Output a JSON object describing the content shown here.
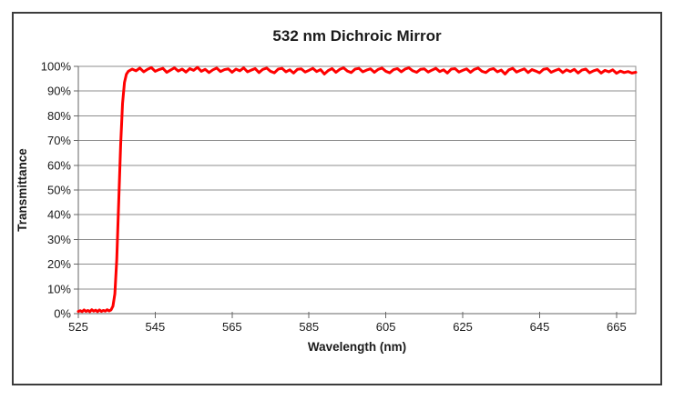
{
  "window": {
    "background": "#ffffff",
    "frame_border_color": "#3c3c3c"
  },
  "chart_data": {
    "type": "line",
    "title": "532 nm Dichroic Mirror",
    "xlabel": "Wavelength (nm)",
    "ylabel": "Transmittance",
    "xlim": [
      525,
      670
    ],
    "ylim": [
      0,
      100
    ],
    "x_ticks": [
      525,
      545,
      565,
      585,
      605,
      625,
      645,
      665
    ],
    "y_ticks": [
      0,
      10,
      20,
      30,
      40,
      50,
      60,
      70,
      80,
      90,
      100
    ],
    "y_tick_suffix": "%",
    "grid": "horizontal",
    "legend": "none",
    "colors": {
      "line": "#ff0000",
      "gridline": "#8c8c8c",
      "plot_border": "#8c8c8c",
      "axis": "#666666",
      "text": "#1a1a1a"
    },
    "line_width": 3,
    "series": [
      {
        "name": "Transmittance",
        "x": [
          525,
          525.5,
          526,
          526.5,
          527,
          527.5,
          528,
          528.5,
          529,
          529.5,
          530,
          530.5,
          531,
          531.5,
          532,
          532.5,
          533,
          533.5,
          534,
          534.5,
          535,
          535.5,
          536,
          536.5,
          537,
          537.5,
          538,
          539,
          540,
          541,
          542,
          543,
          544,
          545,
          546,
          547,
          548,
          549,
          550,
          551,
          552,
          553,
          554,
          555,
          556,
          557,
          558,
          559,
          560,
          561,
          562,
          563,
          564,
          565,
          566,
          567,
          568,
          569,
          570,
          571,
          572,
          573,
          574,
          575,
          576,
          577,
          578,
          579,
          580,
          581,
          582,
          583,
          584,
          585,
          586,
          587,
          588,
          589,
          590,
          591,
          592,
          593,
          594,
          595,
          596,
          597,
          598,
          599,
          600,
          601,
          602,
          603,
          604,
          605,
          606,
          607,
          608,
          609,
          610,
          611,
          612,
          613,
          614,
          615,
          616,
          617,
          618,
          619,
          620,
          621,
          622,
          623,
          624,
          625,
          626,
          627,
          628,
          629,
          630,
          631,
          632,
          633,
          634,
          635,
          636,
          637,
          638,
          639,
          640,
          641,
          642,
          643,
          644,
          645,
          646,
          647,
          648,
          649,
          650,
          651,
          652,
          653,
          654,
          655,
          656,
          657,
          658,
          659,
          660,
          661,
          662,
          663,
          664,
          665,
          666,
          667,
          668,
          669,
          670
        ],
        "y": [
          0.9,
          1.2,
          0.8,
          1.5,
          0.9,
          1.3,
          0.8,
          1.6,
          1.0,
          1.4,
          0.8,
          1.5,
          0.9,
          1.3,
          1.0,
          1.6,
          1.1,
          1.5,
          3.0,
          8.0,
          22,
          45,
          68,
          85,
          93.5,
          96.8,
          98.0,
          98.9,
          98.2,
          99.3,
          97.8,
          98.8,
          99.5,
          98.0,
          98.7,
          99.2,
          97.6,
          98.5,
          99.4,
          98.1,
          98.9,
          97.7,
          99.1,
          98.4,
          99.6,
          98.0,
          98.8,
          97.5,
          98.6,
          99.3,
          97.9,
          98.7,
          99.0,
          97.6,
          98.9,
          98.2,
          99.4,
          97.8,
          98.5,
          99.1,
          97.5,
          98.8,
          99.3,
          98.0,
          97.4,
          98.9,
          99.2,
          97.8,
          98.6,
          97.3,
          98.8,
          99.0,
          97.7,
          98.4,
          99.2,
          97.9,
          98.7,
          96.9,
          98.3,
          99.1,
          97.6,
          98.8,
          99.4,
          98.1,
          97.5,
          98.9,
          99.2,
          97.8,
          98.5,
          99.0,
          97.6,
          98.8,
          99.3,
          98.0,
          97.4,
          98.7,
          99.1,
          97.8,
          98.9,
          99.4,
          98.2,
          97.6,
          98.8,
          99.0,
          97.7,
          98.5,
          99.2,
          97.9,
          98.6,
          97.3,
          98.9,
          99.1,
          97.7,
          98.4,
          99.0,
          97.6,
          98.8,
          99.3,
          98.0,
          97.5,
          98.7,
          99.1,
          97.8,
          98.5,
          96.9,
          98.6,
          99.2,
          97.7,
          98.4,
          99.0,
          97.5,
          98.7,
          98.1,
          97.4,
          98.8,
          99.1,
          97.6,
          98.3,
          98.9,
          97.5,
          98.6,
          97.9,
          98.8,
          97.3,
          98.5,
          98.9,
          97.4,
          98.2,
          98.7,
          97.3,
          98.4,
          97.8,
          98.6,
          97.2,
          98.1,
          97.5,
          97.9,
          97.3,
          97.6
        ]
      }
    ]
  }
}
